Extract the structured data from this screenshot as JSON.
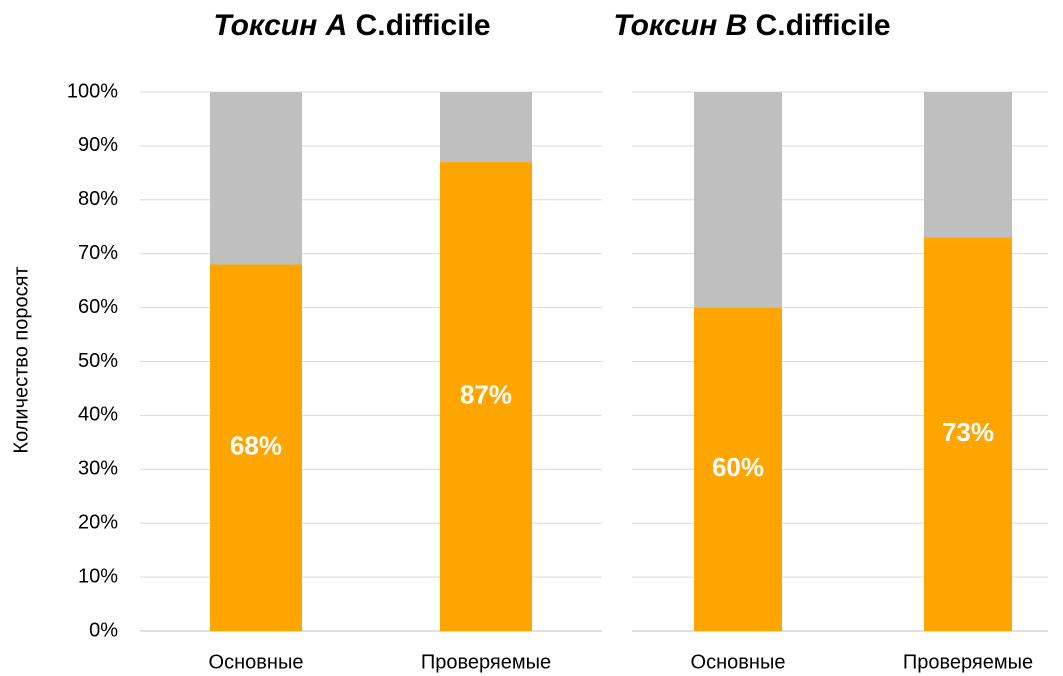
{
  "chart_data": [
    {
      "type": "stacked-bar",
      "title": [
        "Токсин A",
        "C.difficile"
      ],
      "y_label": "Количество поросят",
      "categories": [
        "Основные",
        "Проверяемые"
      ],
      "series": [
        {
          "color": "#ffa500",
          "values": [
            68,
            87
          ],
          "value_labels": [
            "68%",
            "87%"
          ]
        },
        {
          "color": "#bfbfbf",
          "values": [
            32,
            13
          ]
        }
      ],
      "ylim": [
        0,
        100
      ],
      "yticks": [
        {
          "value": 0,
          "label": "0%"
        },
        {
          "value": 10,
          "label": "10%"
        },
        {
          "value": 20,
          "label": "20%"
        },
        {
          "value": 30,
          "label": "30%"
        },
        {
          "value": 40,
          "label": "40%"
        },
        {
          "value": 50,
          "label": "50%"
        },
        {
          "value": 60,
          "label": "60%"
        },
        {
          "value": 70,
          "label": "70%"
        },
        {
          "value": 80,
          "label": "80%"
        },
        {
          "value": 90,
          "label": "90%"
        },
        {
          "value": 100,
          "label": "100%"
        }
      ],
      "grid": true
    },
    {
      "type": "stacked-bar",
      "title": [
        "Токсин B",
        "C.difficile"
      ],
      "categories": [
        "Основные",
        "Проверяемые"
      ],
      "series": [
        {
          "color": "#ffa500",
          "values": [
            60,
            73
          ],
          "value_labels": [
            "60%",
            "73%"
          ]
        },
        {
          "color": "#bfbfbf",
          "values": [
            40,
            27
          ]
        }
      ],
      "ylim": [
        0,
        100
      ],
      "yticks": [
        0,
        10,
        20,
        30,
        40,
        50,
        60,
        70,
        80,
        90,
        100
      ],
      "grid": true
    }
  ]
}
